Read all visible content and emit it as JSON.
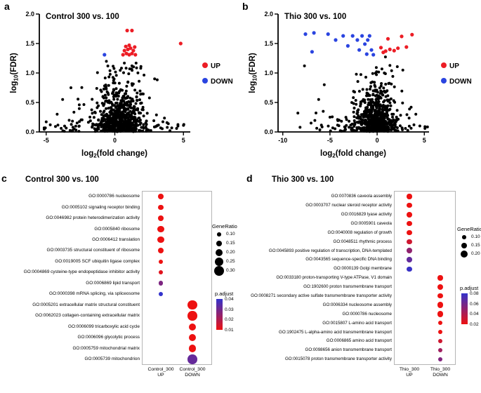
{
  "figure": {
    "panel_letters": [
      "a",
      "b",
      "c",
      "d"
    ]
  },
  "chart_data": [
    {
      "id": "volcano-a",
      "panel": "a",
      "type": "scatter",
      "title": "Control 300 vs. 100",
      "xlabel": "log2(fold change)",
      "ylabel": "log10(FDR)",
      "xlabel_parts": {
        "pre": "log",
        "sub": "2",
        "post": "(fold change)"
      },
      "ylabel_parts": {
        "pre": "log",
        "sub": "10",
        "post": "(FDR)"
      },
      "xlim": [
        -5.5,
        5.5
      ],
      "ylim": [
        0,
        2.0
      ],
      "xticks": [
        -5,
        0,
        5
      ],
      "xtick_labels": [
        "-5",
        "0",
        "5"
      ],
      "yticks": [
        0,
        0.5,
        1.0,
        1.5,
        2.0
      ],
      "ytick_labels": [
        "0.0",
        "0.5",
        "1.0",
        "1.5",
        "2.0"
      ],
      "legend": [
        {
          "label": "UP",
          "color": "#ec1d25"
        },
        {
          "label": "DOWN",
          "color": "#2a44e0"
        }
      ],
      "up_points": [
        [
          0.6,
          1.31
        ],
        [
          0.85,
          1.33
        ],
        [
          1.05,
          1.31
        ],
        [
          1.25,
          1.33
        ],
        [
          1.5,
          1.31
        ],
        [
          0.7,
          1.38
        ],
        [
          0.95,
          1.4
        ],
        [
          1.15,
          1.42
        ],
        [
          1.35,
          1.38
        ],
        [
          0.8,
          1.45
        ],
        [
          1.05,
          1.47
        ],
        [
          1.45,
          1.44
        ],
        [
          0.9,
          1.72
        ],
        [
          1.25,
          1.72
        ],
        [
          4.8,
          1.5
        ]
      ],
      "down_points": [
        [
          -0.75,
          1.31
        ]
      ],
      "black_outlier_points": [
        [
          -4.7,
          0.12
        ],
        [
          4.5,
          0.06
        ],
        [
          -4.2,
          0.3
        ],
        [
          -3.8,
          0.55
        ],
        [
          3.9,
          0.14
        ],
        [
          -3.2,
          0.75
        ],
        [
          2.9,
          0.9
        ]
      ],
      "background_cloud": {
        "seed": 11,
        "groups": [
          {
            "n": 520,
            "xm": 0.35,
            "xs": 0.75,
            "yb": 0.005,
            "ysc": 0.32,
            "ymax": 1.28
          },
          {
            "n": 150,
            "xm": 0.0,
            "xs": 2.3,
            "yb": 0.01,
            "ysc": 0.14,
            "ymax": 0.55
          },
          {
            "n": 60,
            "xm": 0.2,
            "xs": 1.1,
            "yb": 0.35,
            "ysc": 0.45,
            "ymax": 1.28
          },
          {
            "n": 14,
            "xm": 0.6,
            "xs": 0.9,
            "yb": 1.0,
            "ysc": 0.13,
            "ymax": 1.27
          }
        ]
      }
    },
    {
      "id": "volcano-b",
      "panel": "b",
      "type": "scatter",
      "title": "Thio 300 vs. 100",
      "xlabel": "log2(fold change)",
      "ylabel": "log10(FDR)",
      "xlabel_parts": {
        "pre": "log",
        "sub": "2",
        "post": "(fold change)"
      },
      "ylabel_parts": {
        "pre": "log",
        "sub": "10",
        "post": "(FDR)"
      },
      "xlim": [
        -10.5,
        5.5
      ],
      "ylim": [
        0,
        2.0
      ],
      "xticks": [
        -10,
        -5,
        0,
        5
      ],
      "xtick_labels": [
        "-10",
        "-5",
        "0",
        "5"
      ],
      "yticks": [
        0,
        0.5,
        1.0,
        1.5,
        2.0
      ],
      "ytick_labels": [
        "0.0",
        "0.5",
        "1.0",
        "1.5",
        "2.0"
      ],
      "legend": [
        {
          "label": "UP",
          "color": "#ec1d25"
        },
        {
          "label": "DOWN",
          "color": "#2a44e0"
        }
      ],
      "up_points": [
        [
          0.4,
          1.43
        ],
        [
          0.65,
          1.35
        ],
        [
          0.9,
          1.37
        ],
        [
          1.15,
          1.58
        ],
        [
          1.35,
          1.4
        ],
        [
          1.8,
          1.38
        ],
        [
          2.2,
          1.42
        ],
        [
          2.6,
          1.62
        ],
        [
          3.1,
          1.44
        ],
        [
          3.7,
          1.65
        ]
      ],
      "down_points": [
        [
          -7.6,
          1.66
        ],
        [
          -6.9,
          1.36
        ],
        [
          -6.7,
          1.68
        ],
        [
          -5.2,
          1.66
        ],
        [
          -4.4,
          1.56
        ],
        [
          -3.6,
          1.63
        ],
        [
          -3.1,
          1.46
        ],
        [
          -2.6,
          1.63
        ],
        [
          -2.1,
          1.56
        ],
        [
          -1.9,
          1.39
        ],
        [
          -1.6,
          1.63
        ],
        [
          -1.3,
          1.49
        ],
        [
          -1.1,
          1.32
        ],
        [
          -1.0,
          1.56
        ],
        [
          -0.8,
          1.63
        ],
        [
          -0.6,
          1.39
        ],
        [
          -0.4,
          1.31
        ]
      ],
      "black_outlier_points": [
        [
          -8.4,
          0.32
        ],
        [
          -7.7,
          1.12
        ],
        [
          -7.0,
          0.15
        ],
        [
          -6.2,
          0.55
        ],
        [
          -5.6,
          0.8
        ],
        [
          3.6,
          0.42
        ],
        [
          3.9,
          0.12
        ],
        [
          -5.0,
          0.25
        ],
        [
          4.1,
          0.3
        ]
      ],
      "background_cloud": {
        "seed": 23,
        "groups": [
          {
            "n": 500,
            "xm": -0.2,
            "xs": 0.85,
            "yb": 0.005,
            "ysc": 0.3,
            "ymax": 1.28
          },
          {
            "n": 140,
            "xm": -0.8,
            "xs": 2.6,
            "yb": 0.01,
            "ysc": 0.13,
            "ymax": 0.5
          },
          {
            "n": 55,
            "xm": -0.4,
            "xs": 1.4,
            "yb": 0.35,
            "ysc": 0.42,
            "ymax": 1.28
          },
          {
            "n": 10,
            "xm": 0.1,
            "xs": 1.1,
            "yb": 0.95,
            "ysc": 0.16,
            "ymax": 1.27
          }
        ]
      }
    },
    {
      "id": "dotplot-c",
      "panel": "c",
      "type": "dotplot",
      "title": "Control 300 vs. 100",
      "columns": [
        [
          "Control_300",
          "UP"
        ],
        [
          "Control_300",
          "DOWN"
        ]
      ],
      "terms": [
        {
          "label": "GO:0000786 nucleosome",
          "column": "UP",
          "gene_ratio": 0.15,
          "p_adjust": 0.003
        },
        {
          "label": "GO:0005102 signaling receptor binding",
          "column": "UP",
          "gene_ratio": 0.15,
          "p_adjust": 0.003
        },
        {
          "label": "GO:0046982 protein heterodimerization activity",
          "column": "UP",
          "gene_ratio": 0.15,
          "p_adjust": 0.003
        },
        {
          "label": "GO:0005840 ribosome",
          "column": "UP",
          "gene_ratio": 0.18,
          "p_adjust": 0.003
        },
        {
          "label": "GO:0006412 translation",
          "column": "UP",
          "gene_ratio": 0.18,
          "p_adjust": 0.003
        },
        {
          "label": "GO:0003735 structural constituent of ribosome",
          "column": "UP",
          "gene_ratio": 0.16,
          "p_adjust": 0.004
        },
        {
          "label": "GO:0019005 SCF ubiquitin ligase complex",
          "column": "UP",
          "gene_ratio": 0.12,
          "p_adjust": 0.008
        },
        {
          "label": "GO:0004869 cysteine-type endopeptidase inhibitor activity",
          "column": "UP",
          "gene_ratio": 0.12,
          "p_adjust": 0.012
        },
        {
          "label": "GO:0006869 lipid transport",
          "column": "UP",
          "gene_ratio": 0.12,
          "p_adjust": 0.028
        },
        {
          "label": "GO:0000398 mRNA splicing, via spliceosome",
          "column": "UP",
          "gene_ratio": 0.11,
          "p_adjust": 0.042
        },
        {
          "label": "GO:0005201 extracellular matrix structural constituent",
          "column": "DOWN",
          "gene_ratio": 0.28,
          "p_adjust": 0.002
        },
        {
          "label": "GO:0062023 collagen-containing extracellular matrix",
          "column": "DOWN",
          "gene_ratio": 0.28,
          "p_adjust": 0.002
        },
        {
          "label": "GO:0006099 tricarboxylic acid cycle",
          "column": "DOWN",
          "gene_ratio": 0.2,
          "p_adjust": 0.004
        },
        {
          "label": "GO:0006096 glycolytic process",
          "column": "DOWN",
          "gene_ratio": 0.2,
          "p_adjust": 0.006
        },
        {
          "label": "GO:0005759 mitochondrial matrix",
          "column": "DOWN",
          "gene_ratio": 0.22,
          "p_adjust": 0.008
        },
        {
          "label": "GO:0005739 mitochondrion",
          "column": "DOWN",
          "gene_ratio": 0.28,
          "p_adjust": 0.032
        }
      ],
      "size_legend": {
        "title": "GeneRatio",
        "values": [
          0.1,
          0.15,
          0.2,
          0.25,
          0.3
        ],
        "domain": [
          0.1,
          0.3
        ]
      },
      "color_legend": {
        "title": "p.adjust",
        "values": [
          0.04,
          0.03,
          0.02,
          0.01
        ],
        "domain": [
          0.01,
          0.04
        ],
        "low_color": "#ed1111",
        "high_color": "#3333cc"
      }
    },
    {
      "id": "dotplot-d",
      "panel": "d",
      "type": "dotplot",
      "title": "Thio 300 vs. 100",
      "columns": [
        [
          "Thio_300",
          "UP"
        ],
        [
          "Thio_300",
          "DOWN"
        ]
      ],
      "terms": [
        {
          "label": "GO:0070836 caveola assembly",
          "column": "UP",
          "gene_ratio": 0.13,
          "p_adjust": 0.01
        },
        {
          "label": "GO:0003707 nuclear steroid receptor activity",
          "column": "UP",
          "gene_ratio": 0.13,
          "p_adjust": 0.01
        },
        {
          "label": "GO:0016829 lyase activity",
          "column": "UP",
          "gene_ratio": 0.14,
          "p_adjust": 0.01
        },
        {
          "label": "GO:0005901 caveola",
          "column": "UP",
          "gene_ratio": 0.14,
          "p_adjust": 0.012
        },
        {
          "label": "GO:0040008 regulation of growth",
          "column": "UP",
          "gene_ratio": 0.14,
          "p_adjust": 0.018
        },
        {
          "label": "GO:0048511 rhythmic process",
          "column": "UP",
          "gene_ratio": 0.13,
          "p_adjust": 0.03
        },
        {
          "label": "GO:0045893 positive regulation of transcription, DNA-templated",
          "column": "UP",
          "gene_ratio": 0.14,
          "p_adjust": 0.05
        },
        {
          "label": "GO:0043565 sequence-specific DNA binding",
          "column": "UP",
          "gene_ratio": 0.14,
          "p_adjust": 0.065
        },
        {
          "label": "GO:0000139 Golgi membrane",
          "column": "UP",
          "gene_ratio": 0.13,
          "p_adjust": 0.078
        },
        {
          "label": "GO:0033180 proton-transporting V-type ATPase, V1 domain",
          "column": "DOWN",
          "gene_ratio": 0.13,
          "p_adjust": 0.005
        },
        {
          "label": "GO:1902600 proton transmembrane transport",
          "column": "DOWN",
          "gene_ratio": 0.16,
          "p_adjust": 0.005
        },
        {
          "label": "GO:0008271 secondary active sulfate transmembrane transporter activity",
          "column": "DOWN",
          "gene_ratio": 0.13,
          "p_adjust": 0.005
        },
        {
          "label": "GO:0006334 nucleosome assembly",
          "column": "DOWN",
          "gene_ratio": 0.16,
          "p_adjust": 0.005
        },
        {
          "label": "GO:0000786 nucleosome",
          "column": "DOWN",
          "gene_ratio": 0.16,
          "p_adjust": 0.005
        },
        {
          "label": "GO:0015807 L-amino acid transport",
          "column": "DOWN",
          "gene_ratio": 0.11,
          "p_adjust": 0.01
        },
        {
          "label": "GO:1902475 L-alpha-amino acid transmembrane transport",
          "column": "DOWN",
          "gene_ratio": 0.11,
          "p_adjust": 0.02
        },
        {
          "label": "GO:0006865 amino acid transport",
          "column": "DOWN",
          "gene_ratio": 0.11,
          "p_adjust": 0.03
        },
        {
          "label": "GO:0098656 anion transmembrane transport",
          "column": "DOWN",
          "gene_ratio": 0.11,
          "p_adjust": 0.045
        },
        {
          "label": "GO:0015078 proton transmembrane transporter activity",
          "column": "DOWN",
          "gene_ratio": 0.11,
          "p_adjust": 0.055
        }
      ],
      "size_legend": {
        "title": "GeneRatio",
        "values": [
          0.1,
          0.15,
          0.2
        ],
        "domain": [
          0.1,
          0.2
        ]
      },
      "color_legend": {
        "title": "p.adjust",
        "values": [
          0.08,
          0.06,
          0.04,
          0.02
        ],
        "domain": [
          0.02,
          0.08
        ],
        "low_color": "#ed1111",
        "high_color": "#3333cc"
      }
    }
  ]
}
